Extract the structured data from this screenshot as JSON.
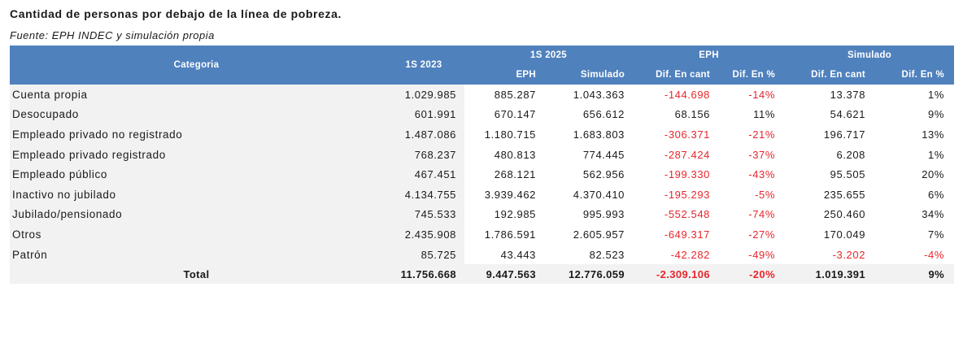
{
  "title": "Cantidad de personas por debajo de la línea de pobreza.",
  "source": "Fuente: EPH INDEC y simulación propia",
  "colors": {
    "header_bg": "#4f81bd",
    "row_bg": "#f2f2f2",
    "negative": "#e8262c"
  },
  "header": {
    "categoria": "Categoria",
    "s2023": "1S 2023",
    "s2025": "1S 2025",
    "eph_group": "EPH",
    "sim_group": "Simulado",
    "eph": "EPH",
    "simulado": "Simulado",
    "dif_cant": "Dif. En cant",
    "dif_pct": "Dif. En %",
    "dif_cant_sim": "Dif. En cant",
    "dif_pct_sim": "Dif. En %"
  },
  "rows": [
    {
      "categoria": "Cuenta propia",
      "s2023": "1.029.985",
      "eph": "885.287",
      "simulado": "1.043.363",
      "eph_dif": "-144.698",
      "eph_pct": "-14%",
      "sim_dif": "13.378",
      "sim_pct": "1%"
    },
    {
      "categoria": "Desocupado",
      "s2023": "601.991",
      "eph": "670.147",
      "simulado": "656.612",
      "eph_dif": "68.156",
      "eph_pct": "11%",
      "sim_dif": "54.621",
      "sim_pct": "9%"
    },
    {
      "categoria": "Empleado privado no registrado",
      "s2023": "1.487.086",
      "eph": "1.180.715",
      "simulado": "1.683.803",
      "eph_dif": "-306.371",
      "eph_pct": "-21%",
      "sim_dif": "196.717",
      "sim_pct": "13%"
    },
    {
      "categoria": "Empleado privado registrado",
      "s2023": "768.237",
      "eph": "480.813",
      "simulado": "774.445",
      "eph_dif": "-287.424",
      "eph_pct": "-37%",
      "sim_dif": "6.208",
      "sim_pct": "1%"
    },
    {
      "categoria": "Empleado público",
      "s2023": "467.451",
      "eph": "268.121",
      "simulado": "562.956",
      "eph_dif": "-199.330",
      "eph_pct": "-43%",
      "sim_dif": "95.505",
      "sim_pct": "20%"
    },
    {
      "categoria": "Inactivo no jubilado",
      "s2023": "4.134.755",
      "eph": "3.939.462",
      "simulado": "4.370.410",
      "eph_dif": "-195.293",
      "eph_pct": "-5%",
      "sim_dif": "235.655",
      "sim_pct": "6%"
    },
    {
      "categoria": "Jubilado/pensionado",
      "s2023": "745.533",
      "eph": "192.985",
      "simulado": "995.993",
      "eph_dif": "-552.548",
      "eph_pct": "-74%",
      "sim_dif": "250.460",
      "sim_pct": "34%"
    },
    {
      "categoria": "Otros",
      "s2023": "2.435.908",
      "eph": "1.786.591",
      "simulado": "2.605.957",
      "eph_dif": "-649.317",
      "eph_pct": "-27%",
      "sim_dif": "170.049",
      "sim_pct": "7%"
    },
    {
      "categoria": "Patrón",
      "s2023": "85.725",
      "eph": "43.443",
      "simulado": "82.523",
      "eph_dif": "-42.282",
      "eph_pct": "-49%",
      "sim_dif": "-3.202",
      "sim_pct": "-4%"
    }
  ],
  "total": {
    "categoria": "Total",
    "s2023": "11.756.668",
    "eph": "9.447.563",
    "simulado": "12.776.059",
    "eph_dif": "-2.309.106",
    "eph_pct": "-20%",
    "sim_dif": "1.019.391",
    "sim_pct": "9%"
  }
}
